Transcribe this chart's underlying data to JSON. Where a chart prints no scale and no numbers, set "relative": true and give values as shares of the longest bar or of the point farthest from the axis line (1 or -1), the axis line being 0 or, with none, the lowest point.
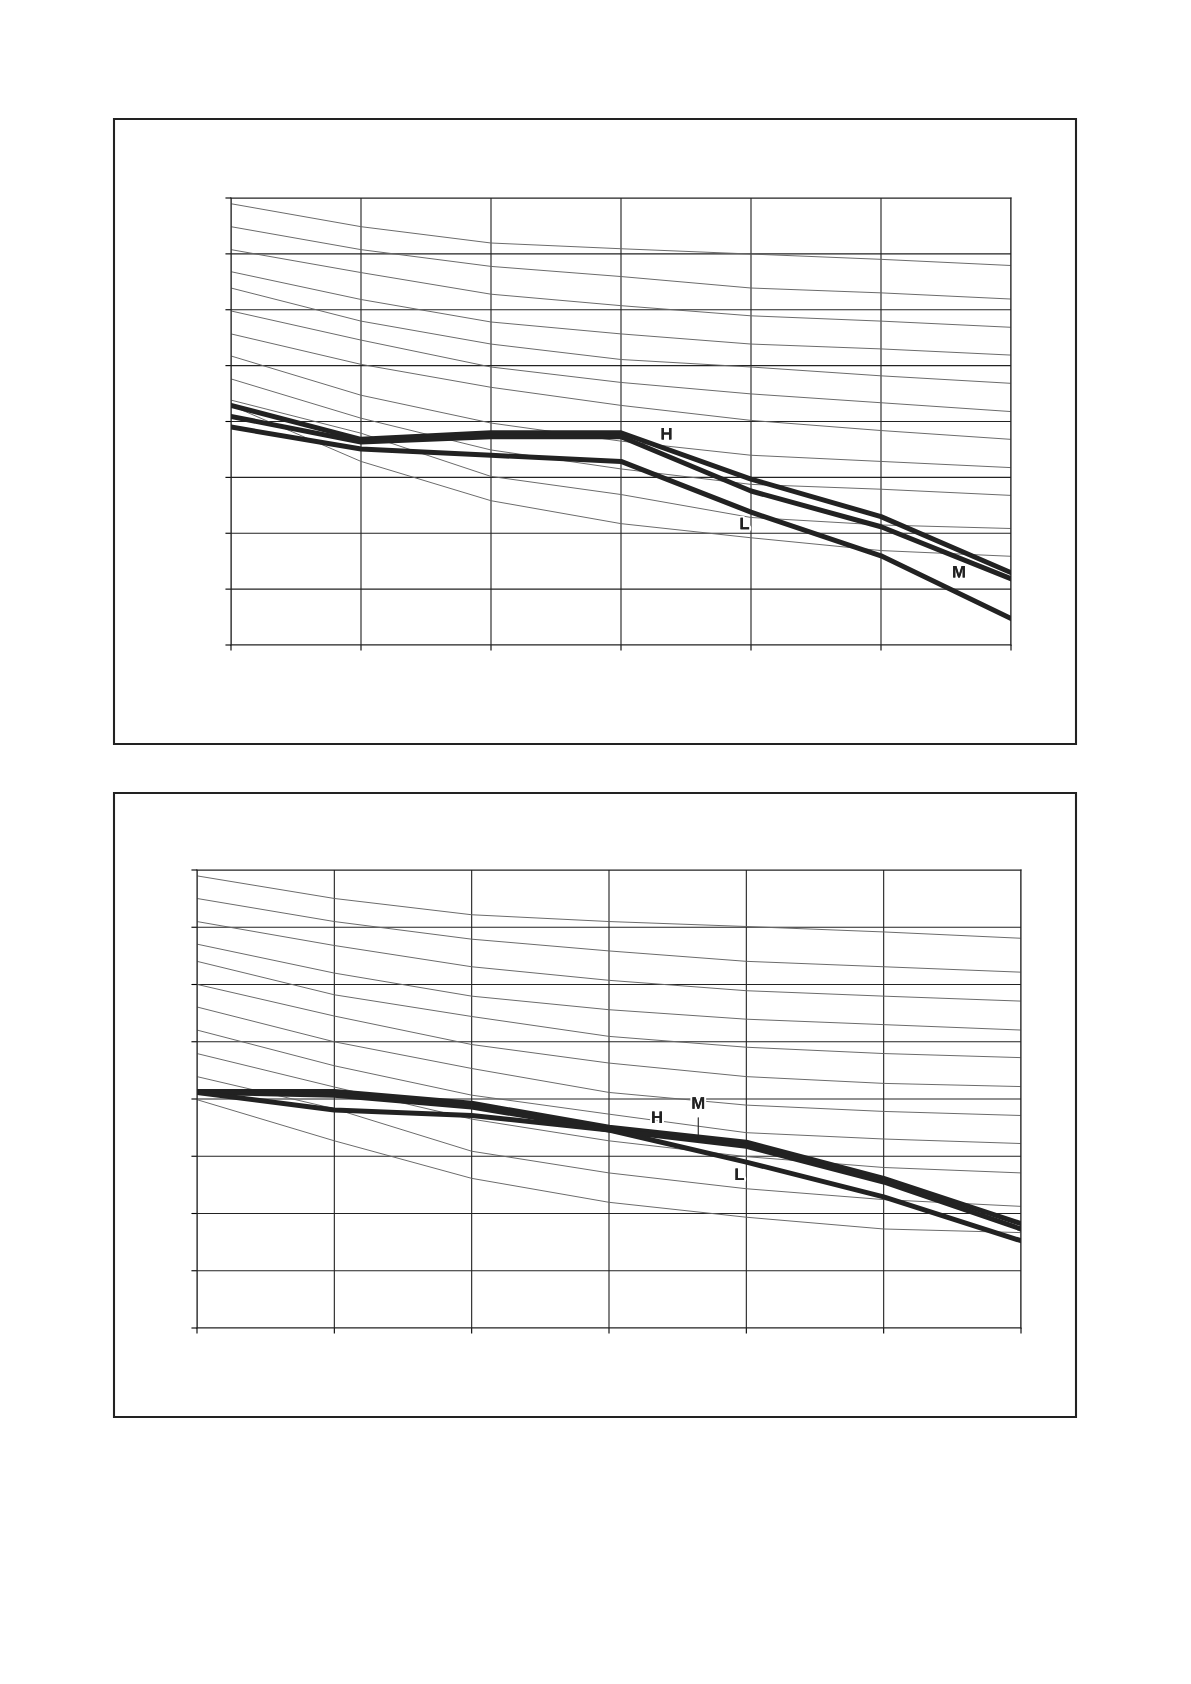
{
  "chart_data": [
    {
      "type": "line",
      "relative": true,
      "grid": true,
      "tick_labels": false,
      "marker": "none",
      "line_style": "solid",
      "categories": [
        null,
        null,
        null,
        null,
        null,
        null,
        null
      ],
      "series": [
        {
          "color": "#666666",
          "values": [
            1.0,
            0.948,
            0.911,
            0.898,
            0.886,
            0.874,
            0.86
          ]
        },
        {
          "color": "#666666",
          "values": [
            0.948,
            0.896,
            0.858,
            0.835,
            0.809,
            0.798,
            0.784
          ]
        },
        {
          "color": "#666666",
          "values": [
            0.896,
            0.844,
            0.795,
            0.769,
            0.746,
            0.734,
            0.72
          ]
        },
        {
          "color": "#666666",
          "values": [
            0.846,
            0.783,
            0.732,
            0.705,
            0.682,
            0.671,
            0.657
          ]
        },
        {
          "color": "#666666",
          "values": [
            0.809,
            0.734,
            0.682,
            0.647,
            0.63,
            0.61,
            0.593
          ]
        },
        {
          "color": "#666666",
          "values": [
            0.757,
            0.691,
            0.63,
            0.595,
            0.569,
            0.549,
            0.529
          ]
        },
        {
          "color": "#666666",
          "values": [
            0.705,
            0.636,
            0.584,
            0.543,
            0.509,
            0.486,
            0.466
          ]
        },
        {
          "color": "#666666",
          "values": [
            0.655,
            0.566,
            0.503,
            0.462,
            0.43,
            0.416,
            0.402
          ]
        },
        {
          "color": "#666666",
          "values": [
            0.603,
            0.514,
            0.442,
            0.399,
            0.364,
            0.353,
            0.339
          ]
        },
        {
          "color": "#666666",
          "values": [
            0.555,
            0.48,
            0.382,
            0.341,
            0.289,
            0.272,
            0.264
          ]
        },
        {
          "color": "#666666",
          "values": [
            0.543,
            0.416,
            0.327,
            0.275,
            0.243,
            0.214,
            0.201
          ]
        },
        {
          "name": "H",
          "color": "#222222",
          "values": [
            0.543,
            0.466,
            0.481,
            0.481,
            0.376,
            0.291,
            0.164
          ]
        },
        {
          "name": "M",
          "color": "#222222",
          "values": [
            0.518,
            0.46,
            0.472,
            0.472,
            0.349,
            0.268,
            0.15
          ]
        },
        {
          "name": "L",
          "color": "#222222",
          "values": [
            0.494,
            0.444,
            0.43,
            0.416,
            0.301,
            0.202,
            0.06
          ]
        }
      ]
    },
    {
      "type": "line",
      "relative": true,
      "grid": true,
      "tick_labels": false,
      "marker": "none",
      "line_style": "solid",
      "categories": [
        null,
        null,
        null,
        null,
        null,
        null,
        null
      ],
      "series": [
        {
          "color": "#666666",
          "values": [
            1.0,
            0.95,
            0.914,
            0.899,
            0.888,
            0.876,
            0.862
          ]
        },
        {
          "color": "#666666",
          "values": [
            0.95,
            0.899,
            0.86,
            0.834,
            0.811,
            0.799,
            0.787
          ]
        },
        {
          "color": "#666666",
          "values": [
            0.899,
            0.846,
            0.799,
            0.769,
            0.746,
            0.734,
            0.723
          ]
        },
        {
          "color": "#666666",
          "values": [
            0.849,
            0.785,
            0.734,
            0.704,
            0.683,
            0.671,
            0.659
          ]
        },
        {
          "color": "#666666",
          "values": [
            0.811,
            0.737,
            0.689,
            0.645,
            0.621,
            0.607,
            0.598
          ]
        },
        {
          "color": "#666666",
          "values": [
            0.76,
            0.69,
            0.627,
            0.586,
            0.556,
            0.541,
            0.534
          ]
        },
        {
          "color": "#666666",
          "values": [
            0.71,
            0.633,
            0.574,
            0.521,
            0.493,
            0.479,
            0.47
          ]
        },
        {
          "color": "#666666",
          "values": [
            0.659,
            0.58,
            0.515,
            0.473,
            0.432,
            0.418,
            0.408
          ]
        },
        {
          "color": "#666666",
          "values": [
            0.607,
            0.533,
            0.462,
            0.414,
            0.379,
            0.355,
            0.343
          ]
        },
        {
          "color": "#666666",
          "values": [
            0.556,
            0.485,
            0.391,
            0.343,
            0.308,
            0.284,
            0.269
          ]
        },
        {
          "color": "#666666",
          "values": [
            0.505,
            0.414,
            0.331,
            0.278,
            0.245,
            0.219,
            0.211
          ]
        },
        {
          "name": "H",
          "color": "#222222",
          "values": [
            0.523,
            0.523,
            0.497,
            0.444,
            0.411,
            0.331,
            0.231
          ]
        },
        {
          "name": "M",
          "color": "#222222",
          "values": [
            0.521,
            0.515,
            0.489,
            0.438,
            0.402,
            0.323,
            0.219
          ]
        },
        {
          "name": "L",
          "color": "#222222",
          "values": [
            0.521,
            0.482,
            0.47,
            0.438,
            0.367,
            0.29,
            0.193
          ]
        }
      ]
    }
  ]
}
